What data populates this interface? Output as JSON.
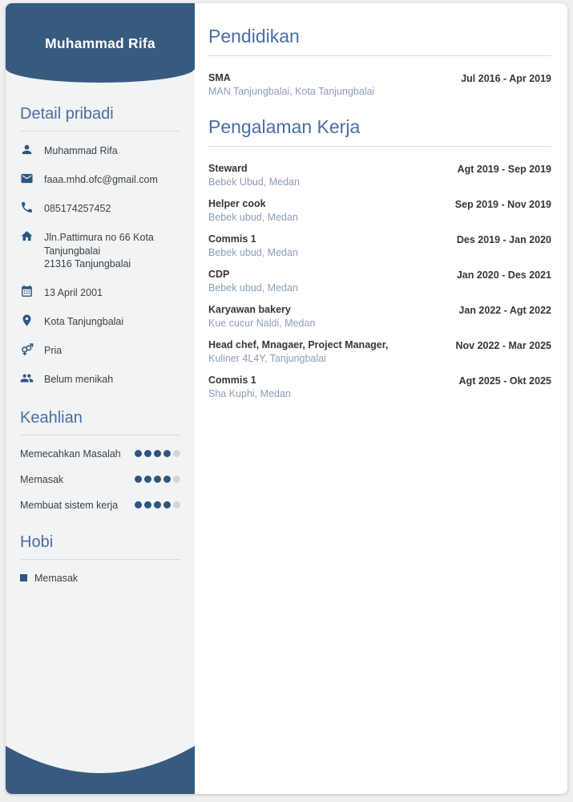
{
  "name": "Muhammad Rifa",
  "colors": {
    "header_blue": "#375a7f",
    "heading_blue": "#4a6da4",
    "icon_blue": "#2d5580",
    "sidebar_bg": "#f1f3f4",
    "subtext": "#8b9db6",
    "dot_empty": "#d2d6da"
  },
  "sidebar": {
    "personal": {
      "title": "Detail pribadi",
      "items": [
        {
          "icon": "person-icon",
          "lines": [
            "Muhammad Rifa"
          ]
        },
        {
          "icon": "email-icon",
          "lines": [
            "faaa.mhd.ofc@gmail.com"
          ]
        },
        {
          "icon": "phone-icon",
          "lines": [
            "085174257452"
          ]
        },
        {
          "icon": "home-icon",
          "lines": [
            "Jln.Pattimura no 66 Kota",
            "Tanjungbalai",
            "21316 Tanjungbalai"
          ]
        },
        {
          "icon": "calendar-icon",
          "lines": [
            "13 April 2001"
          ]
        },
        {
          "icon": "location-icon",
          "lines": [
            "Kota Tanjungbalai"
          ]
        },
        {
          "icon": "gender-icon",
          "lines": [
            "Pria"
          ]
        },
        {
          "icon": "marital-icon",
          "lines": [
            "Belum menikah"
          ]
        }
      ]
    },
    "skills": {
      "title": "Keahlian",
      "items": [
        {
          "label": "Memecahkan Masalah",
          "level": 4,
          "max": 5
        },
        {
          "label": "Memasak",
          "level": 4,
          "max": 5
        },
        {
          "label": "Membuat sistem kerja",
          "level": 4,
          "max": 5
        }
      ]
    },
    "hobbies": {
      "title": "Hobi",
      "items": [
        "Memasak"
      ]
    }
  },
  "main": {
    "education": {
      "title": "Pendidikan",
      "entries": [
        {
          "degree": "SMA",
          "school": "MAN Tanjungbalai, Kota Tanjungbalai",
          "period": "Jul 2016 - Apr 2019"
        }
      ]
    },
    "experience": {
      "title": "Pengalaman Kerja",
      "entries": [
        {
          "role": "Steward",
          "company": "Bebek Ubud, Medan",
          "period": "Agt 2019 - Sep 2019"
        },
        {
          "role": "Helper cook",
          "company": "Bebek ubud, Medan",
          "period": "Sep 2019 - Nov 2019"
        },
        {
          "role": "Commis 1",
          "company": "Bebek ubud, Medan",
          "period": "Des 2019 - Jan 2020"
        },
        {
          "role": "CDP",
          "company": "Bebek ubud, Medan",
          "period": "Jan 2020 - Des 2021"
        },
        {
          "role": "Karyawan bakery",
          "company": "Kue cucur Naldi, Medan",
          "period": "Jan 2022 - Agt 2022"
        },
        {
          "role": "Head chef, Mnagaer, Project Manager,",
          "company": "Kuliner 4L4Y, Tanjungbalai",
          "period": "Nov 2022 - Mar 2025"
        },
        {
          "role": "Commis 1",
          "company": "Sha Kuphi, Medan",
          "period": "Agt 2025 - Okt 2025"
        }
      ]
    }
  }
}
